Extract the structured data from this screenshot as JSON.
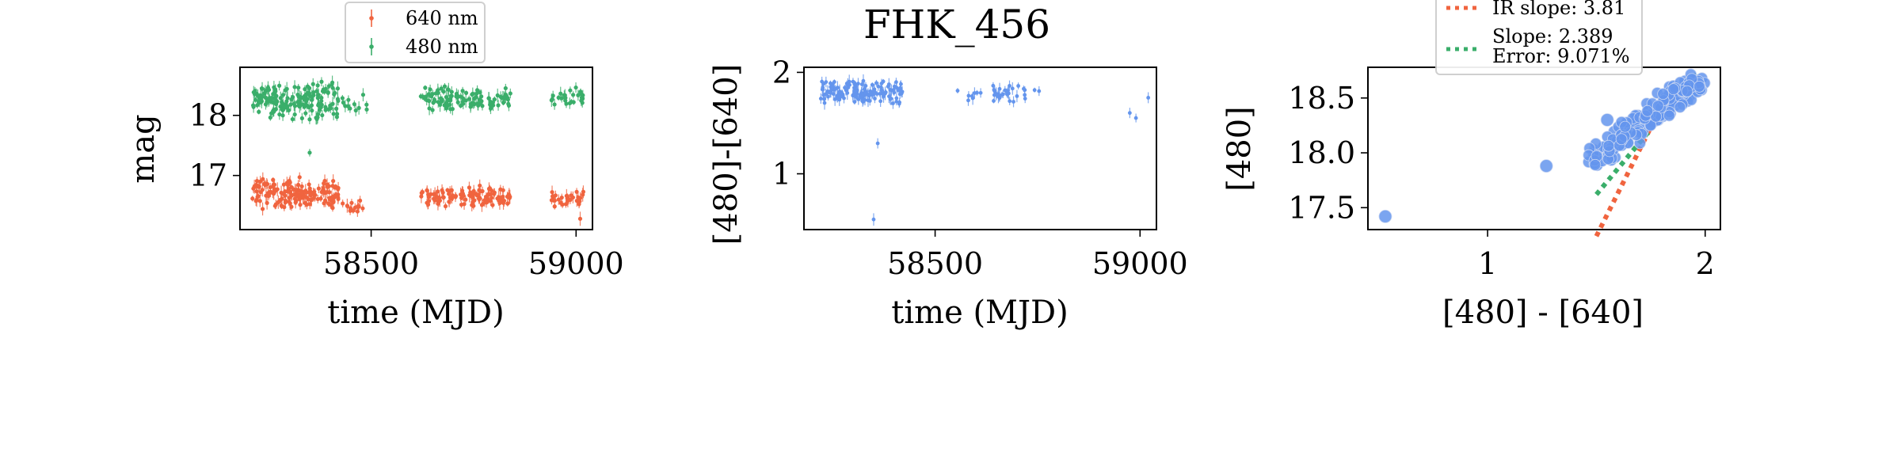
{
  "figure": {
    "title": "FHK_456",
    "colors": {
      "red": "#f0643f",
      "green": "#3aae6a",
      "blue": "#6495ed",
      "lightblue": "#aec6f5"
    }
  },
  "chart_data": [
    {
      "type": "scatter",
      "title": "",
      "xlabel": "time (MJD)",
      "ylabel": "mag",
      "xlim": [
        58180,
        59040
      ],
      "ylim": [
        18.8,
        16.1
      ],
      "xticks": [
        "58500",
        "59000"
      ],
      "yticks": [
        "17",
        "18"
      ],
      "legend": {
        "position": "top-center",
        "entries": [
          "640 nm",
          "480 nm"
        ]
      },
      "series": [
        {
          "name": "640 nm",
          "color": "#f0643f",
          "marker": "point with error bar",
          "clusters": [
            {
              "x": [
                58210,
                58420
              ],
              "y": [
                16.42,
                16.98
              ],
              "count": 160
            },
            {
              "x": [
                58430,
                58480
              ],
              "y": [
                16.35,
                16.65
              ],
              "count": 14
            },
            {
              "x": [
                58620,
                58840
              ],
              "y": [
                16.45,
                16.85
              ],
              "count": 110
            },
            {
              "x": [
                58940,
                59020
              ],
              "y": [
                16.45,
                16.75
              ],
              "count": 30
            }
          ],
          "outliers": [
            {
              "x": 59010,
              "y": 16.28
            }
          ]
        },
        {
          "name": "480 nm",
          "color": "#3aae6a",
          "marker": "point with error bar",
          "clusters": [
            {
              "x": [
                58210,
                58420
              ],
              "y": [
                17.9,
                18.6
              ],
              "count": 170
            },
            {
              "x": [
                58430,
                58490
              ],
              "y": [
                18.05,
                18.45
              ],
              "count": 12
            },
            {
              "x": [
                58620,
                58840
              ],
              "y": [
                18.05,
                18.5
              ],
              "count": 105
            },
            {
              "x": [
                58940,
                59020
              ],
              "y": [
                18.15,
                18.5
              ],
              "count": 28
            }
          ],
          "outliers": [
            {
              "x": 58350,
              "y": 17.38
            }
          ]
        }
      ]
    },
    {
      "type": "scatter",
      "title": "FHK_456",
      "xlabel": "time (MJD)",
      "ylabel": "[480]-[640]",
      "xlim": [
        58180,
        59040
      ],
      "ylim": [
        2.05,
        0.45
      ],
      "xticks": [
        "58500",
        "59000"
      ],
      "yticks": [
        "1",
        "2"
      ],
      "series": [
        {
          "name": "",
          "color": "#6495ed",
          "marker": "point with error bar",
          "clusters": [
            {
              "x": [
                58220,
                58420
              ],
              "y": [
                1.67,
                1.95
              ],
              "count": 150
            },
            {
              "x": [
                58550,
                58620
              ],
              "y": [
                1.72,
                1.85
              ],
              "count": 8
            },
            {
              "x": [
                58640,
                58720
              ],
              "y": [
                1.7,
                1.9
              ],
              "count": 30
            },
            {
              "x": [
                58740,
                58760
              ],
              "y": [
                1.8,
                1.85
              ],
              "count": 2
            }
          ],
          "outliers": [
            {
              "x": 58350,
              "y": 0.55
            },
            {
              "x": 58360,
              "y": 1.3
            },
            {
              "x": 58975,
              "y": 1.6
            },
            {
              "x": 59020,
              "y": 1.75
            },
            {
              "x": 58990,
              "y": 1.55
            }
          ]
        }
      ]
    },
    {
      "type": "scatter",
      "title": "",
      "xlabel": "[480] - [640]",
      "ylabel": "[480]",
      "xlim": [
        0.45,
        2.07
      ],
      "ylim": [
        18.78,
        17.3
      ],
      "xticks": [
        "1",
        "2"
      ],
      "yticks": [
        "17.5",
        "18.0",
        "18.5"
      ],
      "legend": {
        "position": "top-center",
        "entries": [
          "IR slope: 3.81",
          "Slope: 2.389",
          "Error: 9.071%"
        ]
      },
      "fits": [
        {
          "label": "IR slope: 3.81",
          "color": "#f0643f",
          "style": "dotted",
          "x": [
            1.5,
            1.83
          ],
          "y": [
            17.24,
            18.55
          ]
        },
        {
          "label": "Slope: 2.389",
          "color": "#3aae6a",
          "style": "dotted",
          "x": [
            1.5,
            1.97
          ],
          "y": [
            17.62,
            18.74
          ]
        }
      ],
      "series": [
        {
          "name": "",
          "color": "#6495ed",
          "marker": "filled circle",
          "clusters": [
            {
              "x": [
                1.5,
                1.95
              ],
              "y": [
                17.95,
                18.65
              ],
              "count": 160,
              "trend": -1
            }
          ],
          "outliers": [
            {
              "x": 0.53,
              "y": 17.42
            },
            {
              "x": 1.27,
              "y": 17.88
            },
            {
              "x": 1.55,
              "y": 18.3
            }
          ]
        }
      ]
    }
  ]
}
